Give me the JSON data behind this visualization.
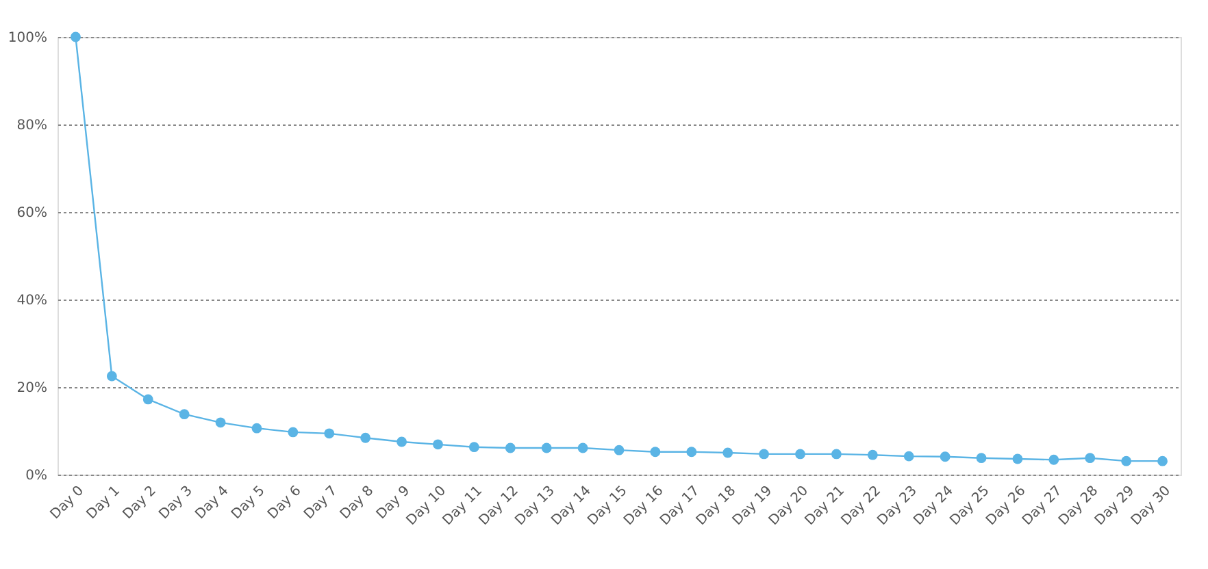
{
  "chart_data": {
    "type": "line",
    "categories": [
      "Day 0",
      "Day 1",
      "Day 2",
      "Day 3",
      "Day 4",
      "Day 5",
      "Day 6",
      "Day 7",
      "Day 8",
      "Day 9",
      "Day 10",
      "Day 11",
      "Day 12",
      "Day 13",
      "Day 14",
      "Day 15",
      "Day 16",
      "Day 17",
      "Day 18",
      "Day 19",
      "Day 20",
      "Day 21",
      "Day 22",
      "Day 23",
      "Day 24",
      "Day 25",
      "Day 26",
      "Day 27",
      "Day 28",
      "Day 29",
      "Day 30"
    ],
    "series": [
      {
        "color": "#5ab4e5",
        "values": [
          100,
          22.5,
          17.2,
          13.8,
          11.9,
          10.6,
          9.7,
          9.4,
          8.4,
          7.5,
          6.9,
          6.3,
          6.1,
          6.1,
          6.1,
          5.6,
          5.2,
          5.2,
          5.0,
          4.7,
          4.7,
          4.7,
          4.5,
          4.2,
          4.1,
          3.8,
          3.6,
          3.4,
          3.8,
          3.1,
          3.1
        ]
      }
    ],
    "ylim": [
      0,
      100
    ],
    "yticks": [
      {
        "value": 0,
        "label": "0%"
      },
      {
        "value": 20,
        "label": "20%"
      },
      {
        "value": 40,
        "label": "40%"
      },
      {
        "value": 60,
        "label": "60%"
      },
      {
        "value": 80,
        "label": "80%"
      },
      {
        "value": 100,
        "label": "100%"
      }
    ],
    "grid": "y",
    "marker": "circle",
    "line_style": "solid"
  }
}
